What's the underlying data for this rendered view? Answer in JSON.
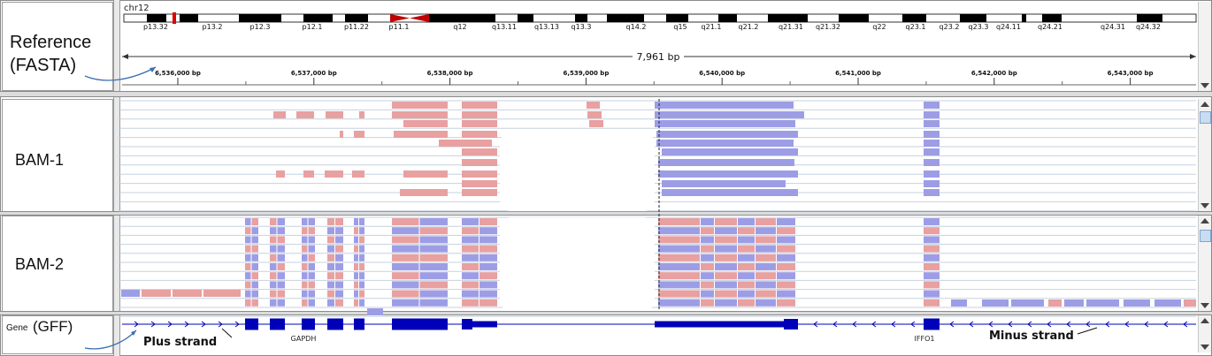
{
  "reference": {
    "chromosome": "chr12",
    "label_line1": "Reference",
    "label_line2": "(FASTA)",
    "span": "7,961 bp"
  },
  "ideogram_bands": [
    "p13.32",
    "p13.2",
    "p12.3",
    "p12.1",
    "p11.22",
    "p11.1",
    "q12",
    "q13.11",
    "q13.13",
    "q13.3",
    "q14.2",
    "q15",
    "q21.1",
    "q21.2",
    "q21.31",
    "q21.32",
    "q22",
    "q23.1",
    "q23.2",
    "q23.3",
    "q24.11",
    "q24.21",
    "q24.31",
    "q24.32"
  ],
  "ruler_ticks": [
    "6,536,000 bp",
    "6,537,000 bp",
    "6,538,000 bp",
    "6,539,000 bp",
    "6,540,000 bp",
    "6,541,000 bp",
    "6,542,000 bp",
    "6,543,000 bp"
  ],
  "tracks": {
    "bam1": "BAM-1",
    "bam2": "BAM-2",
    "gene_prefix": "Gene",
    "gene_label": "(GFF)"
  },
  "genes": {
    "gene1": "GAPDH",
    "gene2": "IFFO1"
  },
  "annotations": {
    "plus": "Plus strand",
    "minus": "Minus strand"
  },
  "colors": {
    "forward_read": "#e8a0a0",
    "reverse_read": "#9d9de6",
    "gene": "#0000b8",
    "ideogram_dark": "#000000",
    "centromere": "#c00000"
  }
}
